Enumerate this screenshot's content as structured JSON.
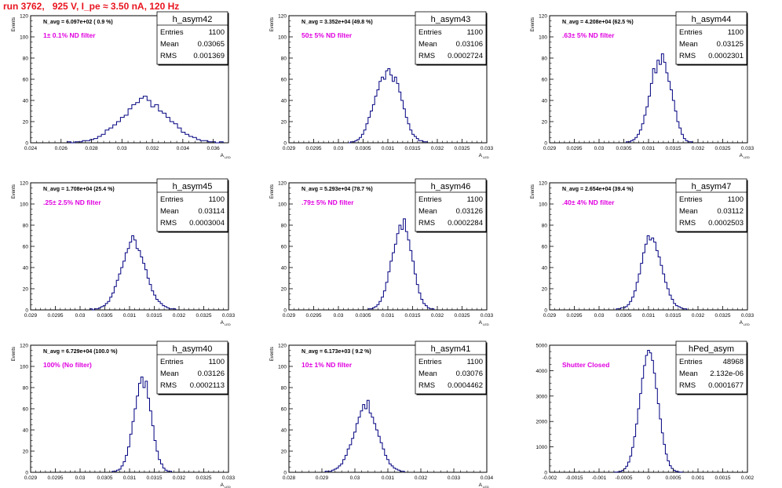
{
  "page_title": "run 3762,   925 V, I_pe ≈ 3.50 nA, 120 Hz",
  "colors": {
    "histogram": "#000080",
    "annotation": "#e000e0",
    "title": "#e8141e",
    "frame": "#000000"
  },
  "chart_data": [
    {
      "type": "histogram",
      "name": "h_asym42",
      "navg": "N_avg = 6.097e+02 ( 0.9 %)",
      "filter": "1± 0.1% ND filter",
      "stats": {
        "Entries": "1100",
        "Mean": "0.03065",
        "RMS": "0.001369"
      },
      "xlim": [
        0.024,
        0.037
      ],
      "ylim": [
        0,
        120
      ],
      "xticks": [
        0.024,
        0.026,
        0.028,
        0.03,
        0.032,
        0.034,
        0.036
      ],
      "xtick_labels": [
        "0.024",
        "0.026",
        "0.028",
        "0.03",
        "0.032",
        "0.034",
        "0.036"
      ],
      "yticks": [
        0,
        20,
        40,
        60,
        80,
        100,
        120
      ],
      "ytick_labels": [
        "0",
        "20",
        "40",
        "60",
        "80",
        "100",
        "120"
      ],
      "xlabel": "A",
      "xlabel_sub": "LED",
      "ylabel": "Events",
      "bins": {
        "x0": 0.0264,
        "width": 0.00025,
        "values": [
          1,
          0,
          1,
          1,
          2,
          2,
          3,
          4,
          6,
          8,
          12,
          14,
          17,
          20,
          24,
          26,
          32,
          36,
          38,
          42,
          44,
          40,
          34,
          36,
          30,
          28,
          24,
          20,
          18,
          14,
          10,
          8,
          6,
          5,
          3,
          2,
          2,
          1,
          1,
          0,
          1
        ]
      }
    },
    {
      "type": "histogram",
      "name": "h_asym43",
      "navg": "N_avg = 3.352e+04 (49.8 %)",
      "filter": "50± 5% ND filter",
      "stats": {
        "Entries": "1100",
        "Mean": "0.03106",
        "RMS": "0.0002724"
      },
      "xlim": [
        0.029,
        0.033
      ],
      "ylim": [
        0,
        120
      ],
      "xticks": [
        0.029,
        0.0295,
        0.03,
        0.0305,
        0.031,
        0.0315,
        0.032,
        0.0325,
        0.033
      ],
      "xtick_labels": [
        "0.029",
        "0.0295",
        "0.03",
        "0.0305",
        "0.031",
        "0.0315",
        "0.032",
        "0.0325",
        "0.033"
      ],
      "yticks": [
        0,
        20,
        40,
        60,
        80,
        100,
        120
      ],
      "ytick_labels": [
        "0",
        "20",
        "40",
        "60",
        "80",
        "100",
        "120"
      ],
      "xlabel": "A",
      "xlabel_sub": "LED",
      "ylabel": "Events",
      "bins": {
        "x0": 0.0302,
        "width": 4.44e-05,
        "values": [
          0,
          1,
          1,
          2,
          3,
          5,
          8,
          12,
          18,
          24,
          30,
          36,
          44,
          50,
          58,
          62,
          60,
          68,
          70,
          64,
          58,
          62,
          56,
          48,
          40,
          32,
          24,
          18,
          12,
          8,
          6,
          4,
          2,
          2,
          1,
          1
        ]
      }
    },
    {
      "type": "histogram",
      "name": "h_asym44",
      "navg": "N_avg = 4.208e+04 (62.5 %)",
      "filter": ".63± 5% ND filter",
      "stats": {
        "Entries": "1100",
        "Mean": "0.03125",
        "RMS": "0.0002301"
      },
      "xlim": [
        0.029,
        0.033
      ],
      "ylim": [
        0,
        120
      ],
      "xticks": [
        0.029,
        0.0295,
        0.03,
        0.0305,
        0.031,
        0.0315,
        0.032,
        0.0325,
        0.033
      ],
      "xtick_labels": [
        "0.029",
        "0.0295",
        "0.03",
        "0.0305",
        "0.031",
        "0.0315",
        "0.032",
        "0.0325",
        "0.033"
      ],
      "yticks": [
        0,
        20,
        40,
        60,
        80,
        100,
        120
      ],
      "ytick_labels": [
        "0",
        "20",
        "40",
        "60",
        "80",
        "100",
        "120"
      ],
      "xlabel": "A",
      "xlabel_sub": "LED",
      "ylabel": "Events",
      "bins": {
        "x0": 0.03055,
        "width": 4.44e-05,
        "values": [
          1,
          1,
          2,
          3,
          5,
          8,
          12,
          18,
          26,
          34,
          44,
          56,
          70,
          66,
          78,
          74,
          84,
          76,
          66,
          58,
          50,
          40,
          30,
          20,
          14,
          8,
          4,
          2,
          1,
          1
        ]
      }
    },
    {
      "type": "histogram",
      "name": "h_asym45",
      "navg": "N_avg = 1.708e+04 (25.4 %)",
      "filter": ".25± 2.5% ND filter",
      "stats": {
        "Entries": "1100",
        "Mean": "0.03114",
        "RMS": "0.0003004"
      },
      "xlim": [
        0.029,
        0.033
      ],
      "ylim": [
        0,
        120
      ],
      "xticks": [
        0.029,
        0.0295,
        0.03,
        0.0305,
        0.031,
        0.0315,
        0.032,
        0.0325,
        0.033
      ],
      "xtick_labels": [
        "0.029",
        "0.0295",
        "0.03",
        "0.0305",
        "0.031",
        "0.0315",
        "0.032",
        "0.0325",
        "0.033"
      ],
      "yticks": [
        0,
        20,
        40,
        60,
        80,
        100,
        120
      ],
      "ytick_labels": [
        "0",
        "20",
        "40",
        "60",
        "80",
        "100",
        "120"
      ],
      "xlabel": "A",
      "xlabel_sub": "LED",
      "ylabel": "Events",
      "bins": {
        "x0": 0.0302,
        "width": 4.44e-05,
        "values": [
          1,
          0,
          1,
          1,
          2,
          3,
          4,
          6,
          8,
          12,
          16,
          22,
          28,
          34,
          40,
          46,
          54,
          58,
          64,
          70,
          66,
          58,
          56,
          50,
          44,
          38,
          30,
          24,
          18,
          14,
          10,
          8,
          6,
          4,
          3,
          2,
          1,
          1,
          1
        ]
      }
    },
    {
      "type": "histogram",
      "name": "h_asym46",
      "navg": "N_avg = 5.293e+04 (78.7 %)",
      "filter": ".79± 5% ND filter",
      "stats": {
        "Entries": "1100",
        "Mean": "0.03126",
        "RMS": "0.0002284"
      },
      "xlim": [
        0.029,
        0.033
      ],
      "ylim": [
        0,
        120
      ],
      "xticks": [
        0.029,
        0.0295,
        0.03,
        0.0305,
        0.031,
        0.0315,
        0.032,
        0.0325,
        0.033
      ],
      "xtick_labels": [
        "0.029",
        "0.0295",
        "0.03",
        "0.0305",
        "0.031",
        "0.0315",
        "0.032",
        "0.0325",
        "0.033"
      ],
      "yticks": [
        0,
        20,
        40,
        60,
        80,
        100,
        120
      ],
      "ytick_labels": [
        "0",
        "20",
        "40",
        "60",
        "80",
        "100",
        "120"
      ],
      "xlabel": "A",
      "xlabel_sub": "LED",
      "ylabel": "Events",
      "bins": {
        "x0": 0.0306,
        "width": 4.44e-05,
        "values": [
          1,
          1,
          2,
          3,
          5,
          8,
          12,
          18,
          26,
          36,
          46,
          54,
          62,
          72,
          80,
          76,
          86,
          74,
          66,
          56,
          46,
          34,
          24,
          16,
          10,
          6,
          4,
          2,
          1,
          1
        ]
      }
    },
    {
      "type": "histogram",
      "name": "h_asym47",
      "navg": "N_avg = 2.654e+04 (39.4 %)",
      "filter": ".40± 4% ND filter",
      "stats": {
        "Entries": "1100",
        "Mean": "0.03112",
        "RMS": "0.0002503"
      },
      "xlim": [
        0.029,
        0.033
      ],
      "ylim": [
        0,
        120
      ],
      "xticks": [
        0.029,
        0.0295,
        0.03,
        0.0305,
        0.031,
        0.0315,
        0.032,
        0.0325,
        0.033
      ],
      "xtick_labels": [
        "0.029",
        "0.0295",
        "0.03",
        "0.0305",
        "0.031",
        "0.0315",
        "0.032",
        "0.0325",
        "0.033"
      ],
      "yticks": [
        0,
        20,
        40,
        60,
        80,
        100,
        120
      ],
      "ytick_labels": [
        "0",
        "20",
        "40",
        "60",
        "80",
        "100",
        "120"
      ],
      "xlabel": "A",
      "xlabel_sub": "LED",
      "ylabel": "Events",
      "bins": {
        "x0": 0.03035,
        "width": 4.44e-05,
        "values": [
          1,
          1,
          2,
          2,
          3,
          5,
          8,
          12,
          18,
          26,
          34,
          44,
          54,
          62,
          70,
          66,
          68,
          64,
          56,
          50,
          42,
          34,
          26,
          20,
          14,
          10,
          6,
          4,
          3,
          2,
          1,
          1
        ]
      }
    },
    {
      "type": "histogram",
      "name": "h_asym40",
      "navg": "N_avg = 6.729e+04 (100.0 %)",
      "filter": "100% (No filter)",
      "stats": {
        "Entries": "1100",
        "Mean": "0.03126",
        "RMS": "0.0002113"
      },
      "xlim": [
        0.029,
        0.033
      ],
      "ylim": [
        0,
        120
      ],
      "xticks": [
        0.029,
        0.0295,
        0.03,
        0.0305,
        0.031,
        0.0315,
        0.032,
        0.0325,
        0.033
      ],
      "xtick_labels": [
        "0.029",
        "0.0295",
        "0.03",
        "0.0305",
        "0.031",
        "0.0315",
        "0.032",
        "0.0325",
        "0.033"
      ],
      "yticks": [
        0,
        20,
        40,
        60,
        80,
        100,
        120
      ],
      "ytick_labels": [
        "0",
        "20",
        "40",
        "60",
        "80",
        "100",
        "120"
      ],
      "xlabel": "A",
      "xlabel_sub": "LED",
      "ylabel": "Events",
      "bins": {
        "x0": 0.03065,
        "width": 4.44e-05,
        "values": [
          1,
          1,
          2,
          3,
          6,
          10,
          16,
          24,
          36,
          48,
          60,
          72,
          84,
          90,
          80,
          86,
          70,
          58,
          44,
          30,
          20,
          12,
          8,
          4,
          2,
          1,
          1
        ]
      }
    },
    {
      "type": "histogram",
      "name": "h_asym41",
      "navg": "N_avg = 6.173e+03 ( 9.2 %)",
      "filter": "10± 1% ND filter",
      "stats": {
        "Entries": "1100",
        "Mean": "0.03076",
        "RMS": "0.0004462"
      },
      "xlim": [
        0.028,
        0.034
      ],
      "ylim": [
        0,
        120
      ],
      "xticks": [
        0.028,
        0.029,
        0.03,
        0.031,
        0.032,
        0.033,
        0.034
      ],
      "xtick_labels": [
        "0.028",
        "0.029",
        "0.03",
        "0.031",
        "0.032",
        "0.033",
        "0.034"
      ],
      "yticks": [
        0,
        20,
        40,
        60,
        80,
        100,
        120
      ],
      "ytick_labels": [
        "0",
        "20",
        "40",
        "60",
        "80",
        "100",
        "120"
      ],
      "xlabel": "A",
      "xlabel_sub": "LED",
      "ylabel": "Events",
      "bins": {
        "x0": 0.0291,
        "width": 6.67e-05,
        "values": [
          1,
          1,
          1,
          2,
          3,
          4,
          6,
          8,
          12,
          16,
          22,
          26,
          32,
          38,
          46,
          52,
          58,
          64,
          60,
          68,
          56,
          52,
          46,
          40,
          34,
          28,
          22,
          16,
          12,
          8,
          6,
          4,
          3,
          2,
          1,
          1
        ]
      }
    },
    {
      "type": "histogram",
      "name": "hPed_asym",
      "navg": "",
      "filter": "Shutter Closed",
      "stats": {
        "Entries": "48968",
        "Mean": "2.132e-06",
        "RMS": "0.0001677"
      },
      "xlim": [
        -0.002,
        0.002
      ],
      "ylim": [
        0,
        5000
      ],
      "xticks": [
        -0.002,
        -0.0015,
        -0.001,
        -0.0005,
        0,
        0.0005,
        0.001,
        0.0015,
        0.002
      ],
      "xtick_labels": [
        "-0.002",
        "-0.0015",
        "-0.001",
        "-0.0005",
        "0",
        "0.0005",
        "0.001",
        "0.0015",
        "0.002"
      ],
      "yticks": [
        0,
        1000,
        2000,
        3000,
        4000,
        5000
      ],
      "ytick_labels": [
        "0",
        "1000",
        "2000",
        "3000",
        "4000",
        "5000"
      ],
      "xlabel": "",
      "xlabel_sub": "",
      "ylabel": "",
      "bins": {
        "x0": -0.0007,
        "width": 4e-05,
        "values": [
          5,
          10,
          20,
          40,
          80,
          140,
          240,
          400,
          640,
          980,
          1400,
          1900,
          2500,
          3100,
          3700,
          4200,
          4600,
          4800,
          4700,
          4400,
          3900,
          3300,
          2700,
          2100,
          1550,
          1100,
          720,
          450,
          260,
          150,
          80,
          40,
          20,
          10,
          5
        ]
      }
    }
  ]
}
